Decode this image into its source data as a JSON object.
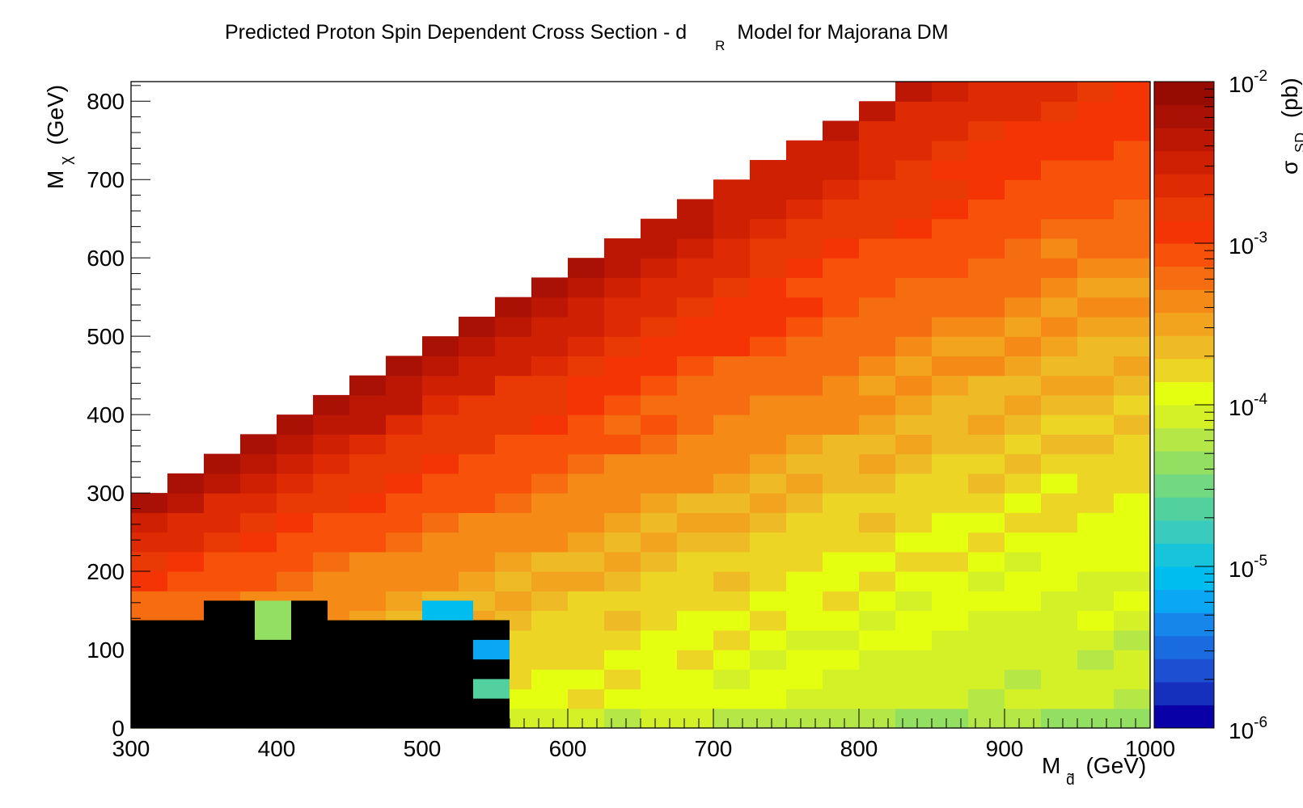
{
  "chart_data": {
    "type": "heatmap",
    "title": {
      "before": "Predicted Proton Spin Dependent Cross Section - d",
      "subscript": "R",
      "after": "Model for Majorana DM"
    },
    "xlabel": {
      "main": "M",
      "subscript": "d̃",
      "unit": "(GeV)"
    },
    "ylabel": {
      "main": "M",
      "subscript": "χ",
      "unit": "(GeV)"
    },
    "zlabel": {
      "main": "σ",
      "subscript": "SD",
      "unit": "(pb)"
    },
    "xlim": [
      300,
      1000
    ],
    "ylim": [
      0,
      825
    ],
    "x_ticks": [
      "300",
      "400",
      "500",
      "600",
      "700",
      "800",
      "900",
      "1000"
    ],
    "y_ticks": [
      "0",
      "100",
      "200",
      "300",
      "400",
      "500",
      "600",
      "700",
      "800"
    ],
    "z_scale": "log",
    "zlim": [
      1e-06,
      0.01
    ],
    "z_ticks": [
      {
        "base": "10",
        "exp": "-6"
      },
      {
        "base": "10",
        "exp": "-5"
      },
      {
        "base": "10",
        "exp": "-4"
      },
      {
        "base": "10",
        "exp": "-3"
      },
      {
        "base": "10",
        "exp": "-2"
      }
    ],
    "palette": [
      "#0a00a8",
      "#1630be",
      "#1d4fd2",
      "#1a6ae0",
      "#1686ea",
      "#0aa8f4",
      "#00bdf0",
      "#18c4da",
      "#38cbbe",
      "#52d19e",
      "#72d881",
      "#93df62",
      "#b5e847",
      "#d4f128",
      "#e4ff10",
      "#ecd525",
      "#eebb26",
      "#f3a41f",
      "#f58a17",
      "#f66c10",
      "#f7510a",
      "#f53405",
      "#e93a05",
      "#df2b04",
      "#d02004",
      "#bb1704",
      "#a81104",
      "#960c03"
    ],
    "kinematic_region": "M_chi < M_d",
    "excluded_color": "#000000",
    "excluded_cells": [
      {
        "x": [
          300,
          350
        ],
        "y": [
          0,
          137.5
        ]
      },
      {
        "x": [
          350,
          385
        ],
        "y": [
          0,
          162.5
        ]
      },
      {
        "x": [
          385,
          410
        ],
        "y": [
          0,
          137.5
        ]
      },
      {
        "x": [
          410,
          435
        ],
        "y": [
          0,
          162.5
        ]
      },
      {
        "x": [
          435,
          560
        ],
        "y": [
          0,
          137.5
        ]
      },
      {
        "x": [
          535,
          560
        ],
        "y": [
          112.5,
          137.5
        ]
      },
      {
        "x": [
          535,
          560
        ],
        "y": [
          62.5,
          87.5
        ]
      }
    ],
    "note": "values read off a 2D histogram: sigma_SD peaks near 3e-3 pb along the top band and falls to ~1e-4 pb for light M_chi and heavy M_d; black cells mark points excluded from the scan"
  }
}
